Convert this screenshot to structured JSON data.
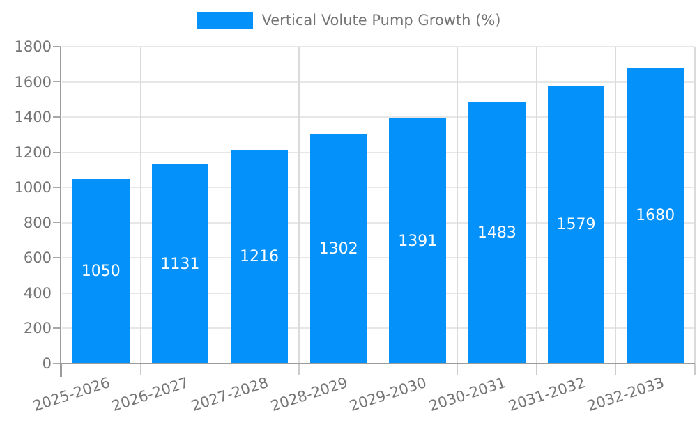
{
  "chart_data": {
    "type": "bar",
    "legend_label": "Vertical Volute Pump Growth (%)",
    "categories": [
      "2025-2026",
      "2026-2027",
      "2027-2028",
      "2028-2029",
      "2029-2030",
      "2030-2031",
      "2031-2032",
      "2032-2033"
    ],
    "values": [
      1050,
      1131,
      1216,
      1302,
      1391,
      1483,
      1579,
      1680
    ],
    "value_labels": [
      "1050",
      "1131",
      "1216",
      "1302",
      "1391",
      "1483",
      "1579",
      "1680"
    ],
    "yticks": [
      0,
      200,
      400,
      600,
      800,
      1000,
      1200,
      1400,
      1600,
      1800
    ],
    "ylim": [
      0,
      1800
    ],
    "xlabel": "",
    "ylabel": "",
    "grid": true,
    "legend_position": "top-center",
    "bar_label_position": "center"
  },
  "colors": {
    "bar": "#0591FA",
    "bar_value_text": "#FFFFFF",
    "axis_text": "#757575",
    "axis_line": "#9C9C9C",
    "gridline_h": "#E7E7E7",
    "gridline_v": "#DBDBDB",
    "tick": "#CCCCCC",
    "background": "#FFFFFF"
  }
}
